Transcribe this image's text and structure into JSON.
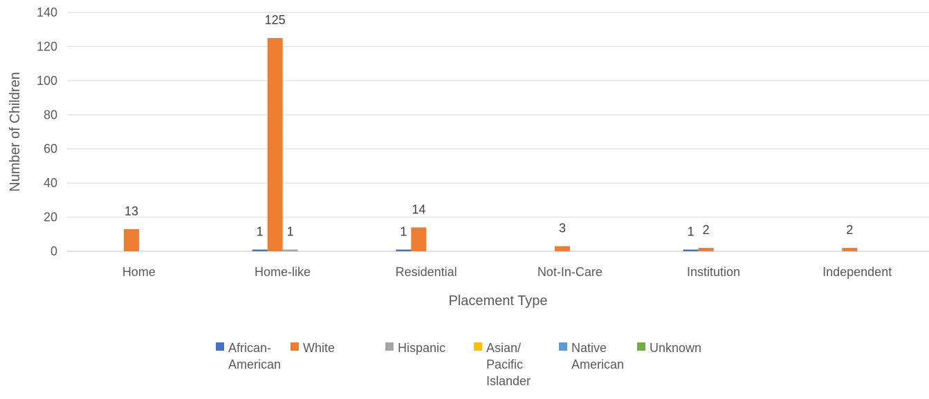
{
  "chart_data": {
    "type": "bar",
    "title": "",
    "xlabel": "Placement Type",
    "ylabel": "Number of Children",
    "ylim": [
      0,
      140
    ],
    "ytick_step": 20,
    "grid": true,
    "legend_position": "bottom",
    "categories": [
      "Home",
      "Home-like",
      "Residential",
      "Not-In-Care",
      "Institution",
      "Independent"
    ],
    "series": [
      {
        "name": "African-American",
        "legend_lines": [
          "African-",
          "American"
        ],
        "color": "#4472C4",
        "values": [
          0,
          1,
          1,
          0,
          1,
          0
        ]
      },
      {
        "name": "White",
        "legend_lines": [
          "White"
        ],
        "color": "#ED7D31",
        "values": [
          13,
          125,
          14,
          3,
          2,
          2
        ]
      },
      {
        "name": "Hispanic",
        "legend_lines": [
          "Hispanic"
        ],
        "color": "#A5A5A5",
        "values": [
          0,
          1,
          0,
          0,
          0,
          0
        ]
      },
      {
        "name": "Asian/ Pacific Islander",
        "legend_lines": [
          "Asian/",
          "Pacific",
          "Islander"
        ],
        "color": "#FFC000",
        "values": [
          0,
          0,
          0,
          0,
          0,
          0
        ]
      },
      {
        "name": "Native American",
        "legend_lines": [
          "Native",
          "American"
        ],
        "color": "#5B9BD5",
        "values": [
          0,
          0,
          0,
          0,
          0,
          0
        ]
      },
      {
        "name": "Unknown",
        "legend_lines": [
          "Unknown"
        ],
        "color": "#70AD47",
        "values": [
          0,
          0,
          0,
          0,
          0,
          0
        ]
      }
    ]
  }
}
